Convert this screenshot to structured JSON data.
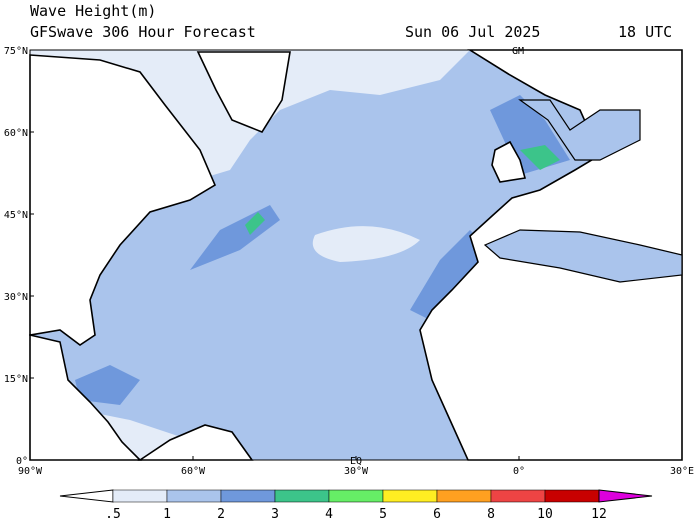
{
  "header": {
    "title": "Wave Height(m)",
    "subtitle": "GFSwave 306 Hour Forecast",
    "date": "Sun 06 Jul 2025",
    "time": "18 UTC"
  },
  "map": {
    "lat_labels": [
      "75°N",
      "60°N",
      "45°N",
      "30°N",
      "15°N",
      "0°"
    ],
    "lon_labels": [
      "90°W",
      "60°W",
      "30°W",
      "0°",
      "30°E"
    ],
    "markers": [
      "GM",
      "EQ"
    ]
  },
  "colorbar": {
    "labels": [
      ".5",
      "1",
      "2",
      "3",
      "4",
      "5",
      "6",
      "8",
      "10",
      "12"
    ],
    "colors": [
      "#ffffff",
      "#e4ecf8",
      "#aac4ec",
      "#6f98dc",
      "#3cc48a",
      "#66ee66",
      "#ffee22",
      "#ffa020",
      "#ee4444",
      "#c80000",
      "#dd00dd"
    ]
  }
}
